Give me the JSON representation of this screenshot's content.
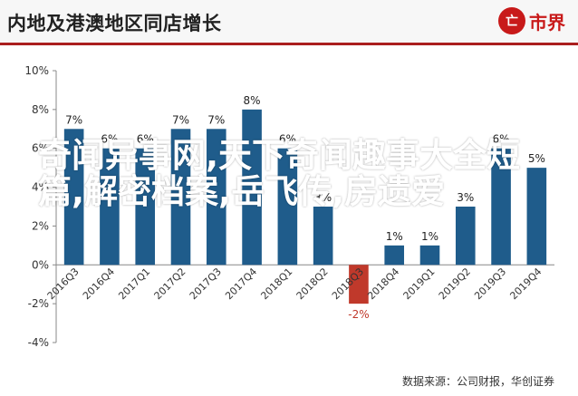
{
  "header": {
    "title": "内地及港澳地区同店增长"
  },
  "logo": {
    "mark": "亡",
    "name": "市界"
  },
  "overlay_text": "奇闻异事网,天下奇闻趣事大全短篇,解密档案,岳飞传,房遗爱",
  "source": "数据来源：公司财报，华创证券",
  "colors": {
    "bar": "#1f5c8b",
    "negative_bar": "#c0392b",
    "negative_label": "#c0392b",
    "header_rule": "#aa1e1e",
    "brand": "#c81a1a"
  },
  "chart_data": {
    "type": "bar",
    "categories": [
      "2016Q3",
      "2016Q4",
      "2017Q1",
      "2017Q2",
      "2017Q3",
      "2017Q4",
      "2018Q1",
      "2018Q2",
      "2018Q3",
      "2018Q4",
      "2019Q1",
      "2019Q2",
      "2019Q3",
      "2019Q4"
    ],
    "values": [
      7,
      6,
      6,
      7,
      7,
      8,
      6,
      3,
      -2,
      1,
      1,
      3,
      6,
      5
    ],
    "data_labels": [
      "7%",
      "6%",
      "6%",
      "7%",
      "7%",
      "8%",
      "6%",
      "3%",
      "-2%",
      "1%",
      "1%",
      "3%",
      "6%",
      "5%"
    ],
    "ylim": [
      -4,
      10
    ],
    "yticks": [
      -4,
      -2,
      0,
      2,
      4,
      6,
      8,
      10
    ],
    "ytick_labels": [
      "-4%",
      "-2%",
      "0%",
      "2%",
      "4%",
      "6%",
      "8%",
      "10%"
    ],
    "title": "",
    "xlabel": "",
    "ylabel": "",
    "grid": false
  }
}
